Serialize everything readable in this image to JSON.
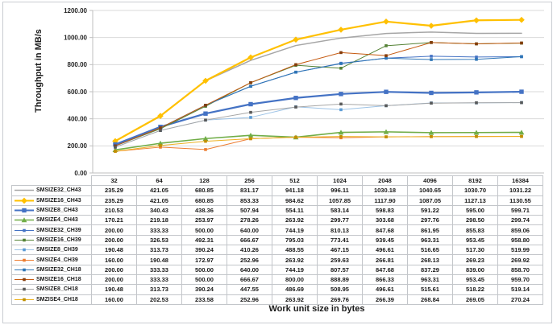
{
  "chart_data": {
    "type": "line",
    "title": "",
    "ylabel": "Throughput in MB/s",
    "xlabel": "Work unit size in bytes",
    "ylim": [
      0,
      1200
    ],
    "y_tick_step": 200,
    "y_ticks": [
      "0.00",
      "200.00",
      "400.00",
      "600.00",
      "800.00",
      "1000.00",
      "1200.00"
    ],
    "grid": true,
    "legend_position": "table-left",
    "categories": [
      "32",
      "64",
      "128",
      "256",
      "512",
      "1024",
      "2048",
      "4096",
      "8192",
      "16384"
    ],
    "series": [
      {
        "name": "SMSIZE32_CH43",
        "color": "#a6a6a6",
        "marker": "none",
        "line_width": 1.5,
        "values": [
          235.29,
          421.05,
          680.85,
          831.17,
          941.18,
          996.11,
          1030.18,
          1040.65,
          1030.7,
          1031.22
        ]
      },
      {
        "name": "SMSIZE16_CH43",
        "color": "#ffc000",
        "marker": "diamond",
        "line_width": 2.2,
        "values": [
          235.29,
          421.05,
          680.85,
          853.33,
          984.62,
          1057.85,
          1117.9,
          1087.05,
          1127.13,
          1130.55
        ]
      },
      {
        "name": "SMSIZE8_CH43",
        "color": "#4472c4",
        "marker": "square",
        "line_width": 2.2,
        "values": [
          210.53,
          340.43,
          438.36,
          507.94,
          554.11,
          583.14,
          598.83,
          591.22,
          595.0,
          599.71
        ]
      },
      {
        "name": "SMSIZE4_CH43",
        "color": "#70ad47",
        "marker": "triangle",
        "line_width": 1.6,
        "values": [
          170.21,
          219.18,
          253.97,
          278.26,
          263.92,
          299.77,
          303.68,
          297.76,
          298.5,
          299.74
        ]
      },
      {
        "name": "SMSIZE32_CH39",
        "color": "#4472c4",
        "marker": "small-square",
        "line_width": 1,
        "values": [
          200.0,
          333.33,
          500.0,
          640.0,
          744.19,
          810.13,
          847.68,
          861.95,
          855.83,
          859.06
        ]
      },
      {
        "name": "SMSIZE16_CH39",
        "color": "#548235",
        "marker": "small-square",
        "line_width": 1,
        "values": [
          200.0,
          326.53,
          492.31,
          666.67,
          795.03,
          773.41,
          939.45,
          963.31,
          953.45,
          958.8
        ]
      },
      {
        "name": "SMSIZE8_CH39",
        "color": "#9dc3e6",
        "marker_color": "#5b9bd5",
        "marker": "small-square",
        "line_width": 1,
        "values": [
          190.48,
          313.73,
          390.24,
          410.26,
          488.55,
          467.15,
          496.61,
          516.65,
          517.3,
          519.99
        ]
      },
      {
        "name": "SMSIZE4_CH39",
        "color": "#ed7d31",
        "marker": "small-square",
        "line_width": 1,
        "values": [
          160.0,
          190.48,
          172.97,
          252.96,
          263.92,
          259.63,
          266.81,
          268.13,
          269.23,
          269.92
        ]
      },
      {
        "name": "SMSIZE32_CH18",
        "color": "#2e75b6",
        "marker": "small-square",
        "line_width": 1,
        "values": [
          200.0,
          333.33,
          500.0,
          640.0,
          744.19,
          807.57,
          847.68,
          837.29,
          839.0,
          858.7
        ]
      },
      {
        "name": "SMSIZE16_CH18",
        "color": "#c55a11",
        "marker_color": "#843c0c",
        "marker": "small-square",
        "line_width": 1,
        "values": [
          200.0,
          333.33,
          500.0,
          666.67,
          800.0,
          888.89,
          866.33,
          963.31,
          953.45,
          959.7
        ]
      },
      {
        "name": "SMSIZE8_CH18",
        "color": "#a6a6a6",
        "marker_color": "#595959",
        "marker": "small-square",
        "line_width": 1,
        "values": [
          190.48,
          313.73,
          390.24,
          447.55,
          486.69,
          508.95,
          496.61,
          515.61,
          518.22,
          519.14
        ]
      },
      {
        "name": "SMZISE4_CH18",
        "color": "#edb120",
        "marker_color": "#bf8f00",
        "marker": "small-square",
        "line_width": 1,
        "values": [
          160.0,
          202.53,
          233.58,
          252.96,
          263.92,
          269.76,
          266.39,
          268.84,
          269.05,
          270.24
        ]
      }
    ]
  }
}
